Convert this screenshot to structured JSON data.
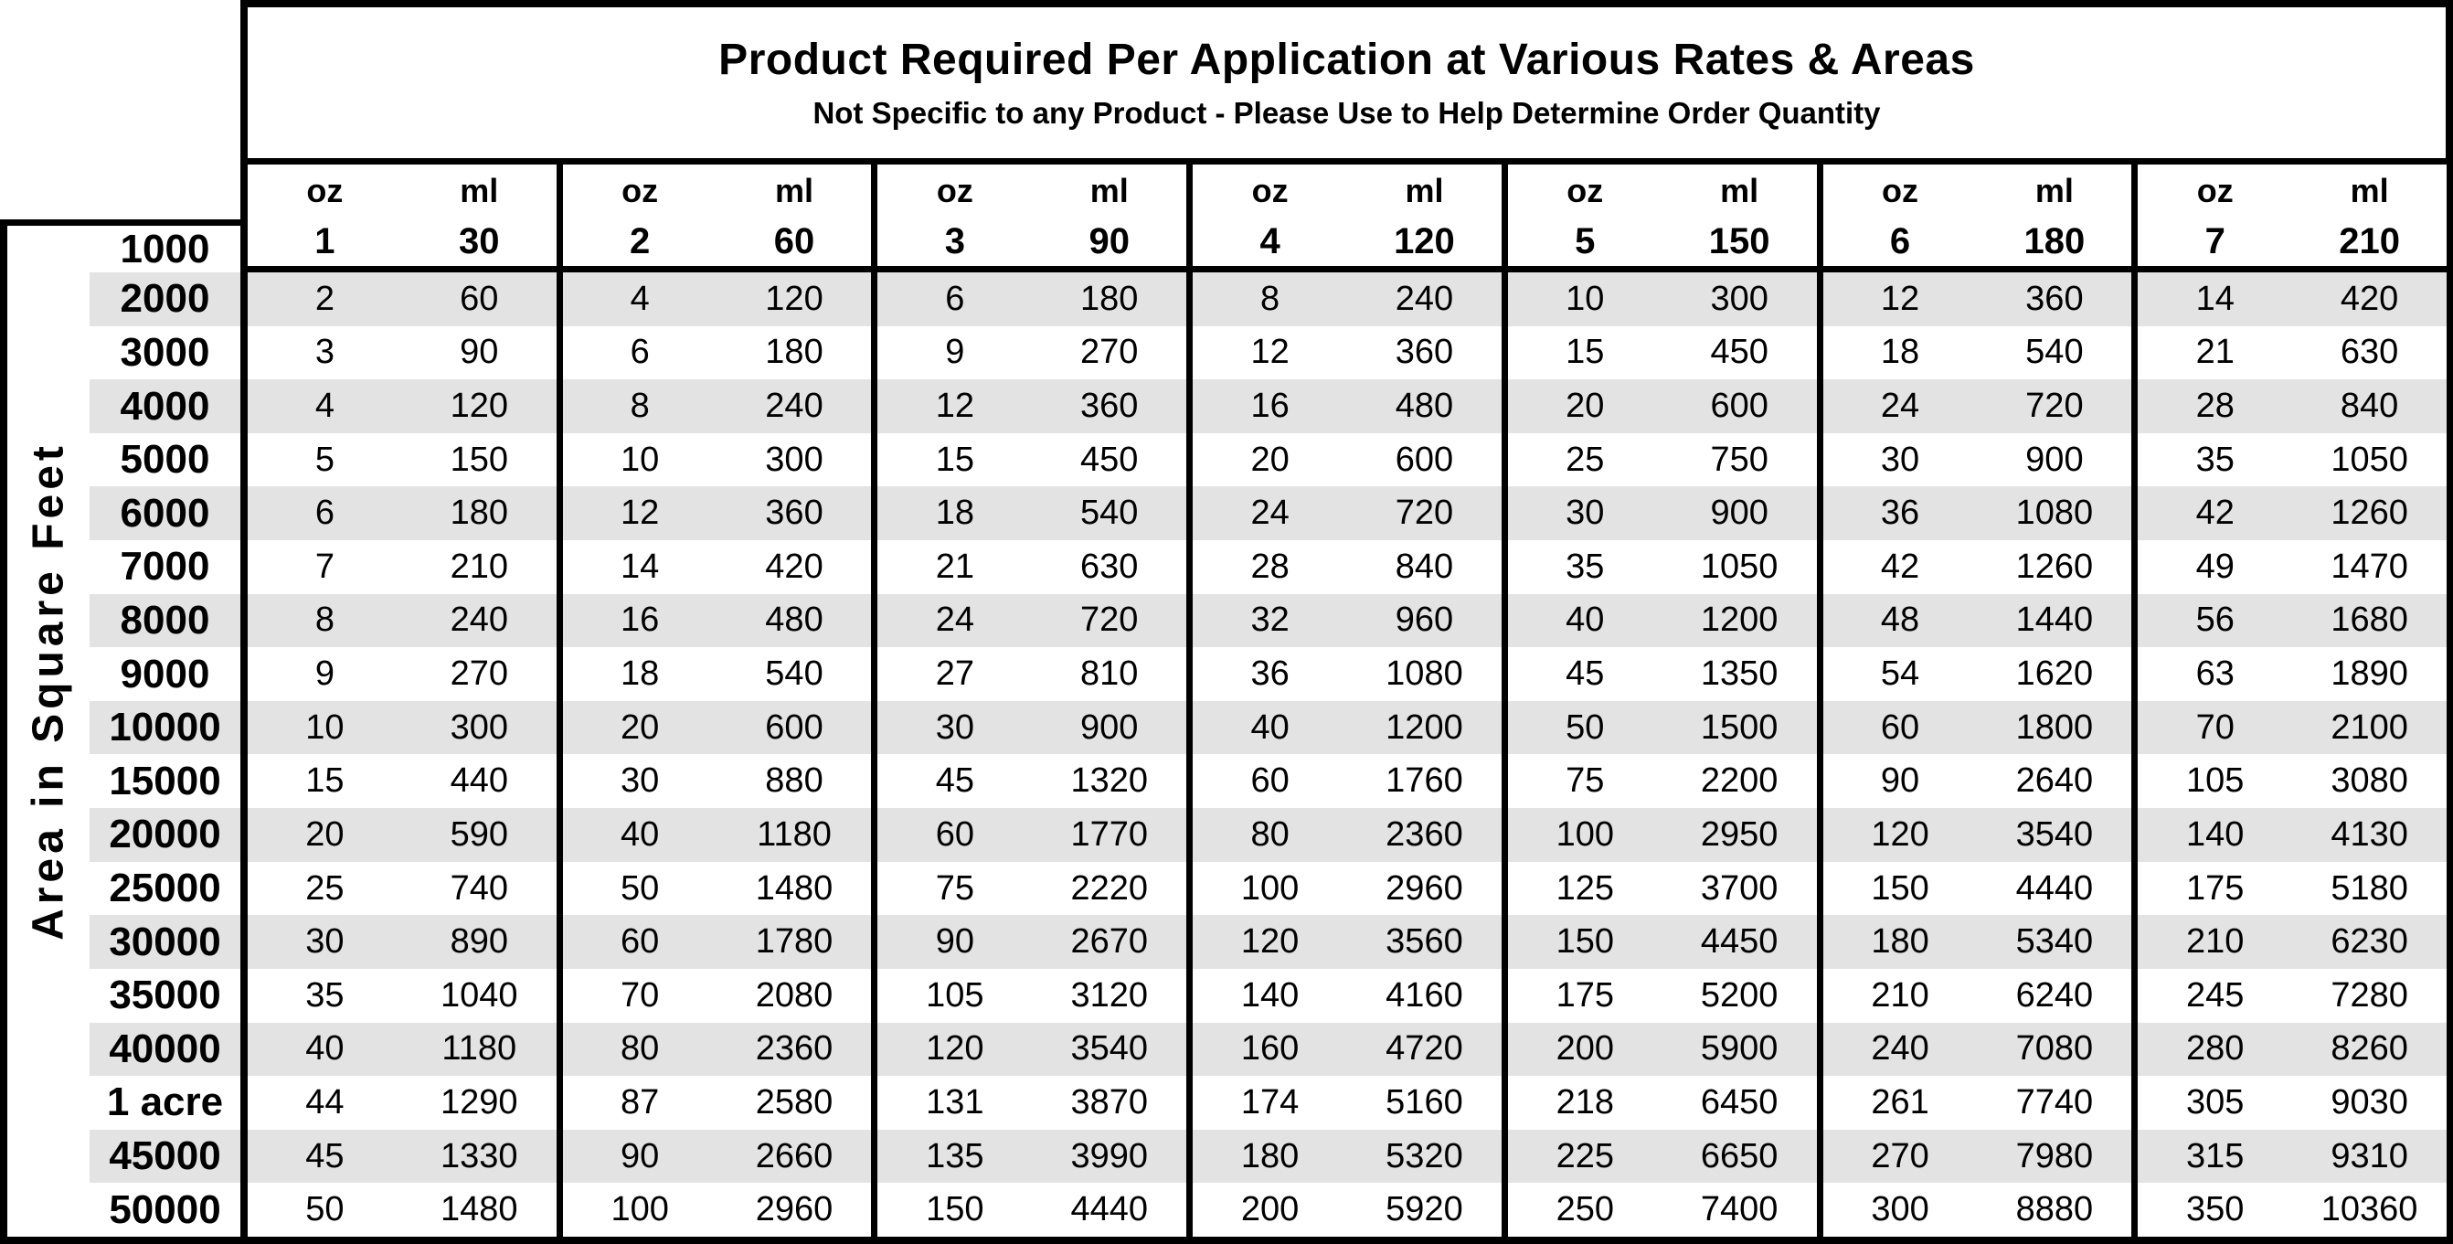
{
  "title": "Product Required Per Application at Various Rates & Areas",
  "subtitle": "Not Specific to any Product - Please Use to Help Determine Order Quantity",
  "y_axis_label": "Area in Square Feet",
  "header": {
    "area_label": "1000",
    "unit_labels": [
      "oz",
      "ml"
    ],
    "rates": [
      [
        "1",
        "30"
      ],
      [
        "2",
        "60"
      ],
      [
        "3",
        "90"
      ],
      [
        "4",
        "120"
      ],
      [
        "5",
        "150"
      ],
      [
        "6",
        "180"
      ],
      [
        "7",
        "210"
      ]
    ]
  },
  "rows": [
    {
      "area": "2000",
      "values": [
        [
          "2",
          "60"
        ],
        [
          "4",
          "120"
        ],
        [
          "6",
          "180"
        ],
        [
          "8",
          "240"
        ],
        [
          "10",
          "300"
        ],
        [
          "12",
          "360"
        ],
        [
          "14",
          "420"
        ]
      ]
    },
    {
      "area": "3000",
      "values": [
        [
          "3",
          "90"
        ],
        [
          "6",
          "180"
        ],
        [
          "9",
          "270"
        ],
        [
          "12",
          "360"
        ],
        [
          "15",
          "450"
        ],
        [
          "18",
          "540"
        ],
        [
          "21",
          "630"
        ]
      ]
    },
    {
      "area": "4000",
      "values": [
        [
          "4",
          "120"
        ],
        [
          "8",
          "240"
        ],
        [
          "12",
          "360"
        ],
        [
          "16",
          "480"
        ],
        [
          "20",
          "600"
        ],
        [
          "24",
          "720"
        ],
        [
          "28",
          "840"
        ]
      ]
    },
    {
      "area": "5000",
      "values": [
        [
          "5",
          "150"
        ],
        [
          "10",
          "300"
        ],
        [
          "15",
          "450"
        ],
        [
          "20",
          "600"
        ],
        [
          "25",
          "750"
        ],
        [
          "30",
          "900"
        ],
        [
          "35",
          "1050"
        ]
      ]
    },
    {
      "area": "6000",
      "values": [
        [
          "6",
          "180"
        ],
        [
          "12",
          "360"
        ],
        [
          "18",
          "540"
        ],
        [
          "24",
          "720"
        ],
        [
          "30",
          "900"
        ],
        [
          "36",
          "1080"
        ],
        [
          "42",
          "1260"
        ]
      ]
    },
    {
      "area": "7000",
      "values": [
        [
          "7",
          "210"
        ],
        [
          "14",
          "420"
        ],
        [
          "21",
          "630"
        ],
        [
          "28",
          "840"
        ],
        [
          "35",
          "1050"
        ],
        [
          "42",
          "1260"
        ],
        [
          "49",
          "1470"
        ]
      ]
    },
    {
      "area": "8000",
      "values": [
        [
          "8",
          "240"
        ],
        [
          "16",
          "480"
        ],
        [
          "24",
          "720"
        ],
        [
          "32",
          "960"
        ],
        [
          "40",
          "1200"
        ],
        [
          "48",
          "1440"
        ],
        [
          "56",
          "1680"
        ]
      ]
    },
    {
      "area": "9000",
      "values": [
        [
          "9",
          "270"
        ],
        [
          "18",
          "540"
        ],
        [
          "27",
          "810"
        ],
        [
          "36",
          "1080"
        ],
        [
          "45",
          "1350"
        ],
        [
          "54",
          "1620"
        ],
        [
          "63",
          "1890"
        ]
      ]
    },
    {
      "area": "10000",
      "values": [
        [
          "10",
          "300"
        ],
        [
          "20",
          "600"
        ],
        [
          "30",
          "900"
        ],
        [
          "40",
          "1200"
        ],
        [
          "50",
          "1500"
        ],
        [
          "60",
          "1800"
        ],
        [
          "70",
          "2100"
        ]
      ]
    },
    {
      "area": "15000",
      "values": [
        [
          "15",
          "440"
        ],
        [
          "30",
          "880"
        ],
        [
          "45",
          "1320"
        ],
        [
          "60",
          "1760"
        ],
        [
          "75",
          "2200"
        ],
        [
          "90",
          "2640"
        ],
        [
          "105",
          "3080"
        ]
      ]
    },
    {
      "area": "20000",
      "values": [
        [
          "20",
          "590"
        ],
        [
          "40",
          "1180"
        ],
        [
          "60",
          "1770"
        ],
        [
          "80",
          "2360"
        ],
        [
          "100",
          "2950"
        ],
        [
          "120",
          "3540"
        ],
        [
          "140",
          "4130"
        ]
      ]
    },
    {
      "area": "25000",
      "values": [
        [
          "25",
          "740"
        ],
        [
          "50",
          "1480"
        ],
        [
          "75",
          "2220"
        ],
        [
          "100",
          "2960"
        ],
        [
          "125",
          "3700"
        ],
        [
          "150",
          "4440"
        ],
        [
          "175",
          "5180"
        ]
      ]
    },
    {
      "area": "30000",
      "values": [
        [
          "30",
          "890"
        ],
        [
          "60",
          "1780"
        ],
        [
          "90",
          "2670"
        ],
        [
          "120",
          "3560"
        ],
        [
          "150",
          "4450"
        ],
        [
          "180",
          "5340"
        ],
        [
          "210",
          "6230"
        ]
      ]
    },
    {
      "area": "35000",
      "values": [
        [
          "35",
          "1040"
        ],
        [
          "70",
          "2080"
        ],
        [
          "105",
          "3120"
        ],
        [
          "140",
          "4160"
        ],
        [
          "175",
          "5200"
        ],
        [
          "210",
          "6240"
        ],
        [
          "245",
          "7280"
        ]
      ]
    },
    {
      "area": "40000",
      "values": [
        [
          "40",
          "1180"
        ],
        [
          "80",
          "2360"
        ],
        [
          "120",
          "3540"
        ],
        [
          "160",
          "4720"
        ],
        [
          "200",
          "5900"
        ],
        [
          "240",
          "7080"
        ],
        [
          "280",
          "8260"
        ]
      ]
    },
    {
      "area": "1 acre",
      "values": [
        [
          "44",
          "1290"
        ],
        [
          "87",
          "2580"
        ],
        [
          "131",
          "3870"
        ],
        [
          "174",
          "5160"
        ],
        [
          "218",
          "6450"
        ],
        [
          "261",
          "7740"
        ],
        [
          "305",
          "9030"
        ]
      ]
    },
    {
      "area": "45000",
      "values": [
        [
          "45",
          "1330"
        ],
        [
          "90",
          "2660"
        ],
        [
          "135",
          "3990"
        ],
        [
          "180",
          "5320"
        ],
        [
          "225",
          "6650"
        ],
        [
          "270",
          "7980"
        ],
        [
          "315",
          "9310"
        ]
      ]
    },
    {
      "area": "50000",
      "values": [
        [
          "50",
          "1480"
        ],
        [
          "100",
          "2960"
        ],
        [
          "150",
          "4440"
        ],
        [
          "200",
          "5920"
        ],
        [
          "250",
          "7400"
        ],
        [
          "300",
          "8880"
        ],
        [
          "350",
          "10360"
        ]
      ]
    }
  ],
  "colors": {
    "row_shade": "#e3e3e3",
    "border": "#000000",
    "background": "#ffffff"
  }
}
